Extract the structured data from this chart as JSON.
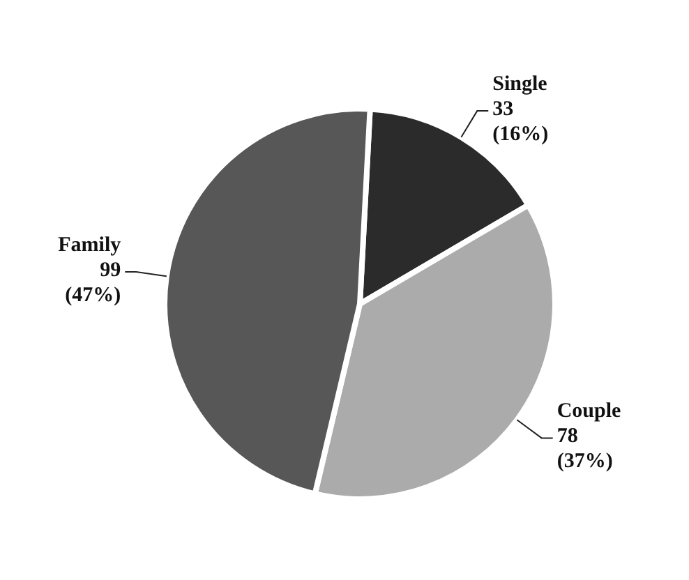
{
  "chart_data": {
    "type": "pie",
    "categories": [
      "Single",
      "Couple",
      "Family"
    ],
    "values": [
      33,
      78,
      99
    ],
    "colors": [
      "#2b2b2b",
      "#ababab",
      "#575757"
    ],
    "value_labels": [
      "33 (16%)",
      "78 (37%)",
      "99 (47%)"
    ]
  }
}
